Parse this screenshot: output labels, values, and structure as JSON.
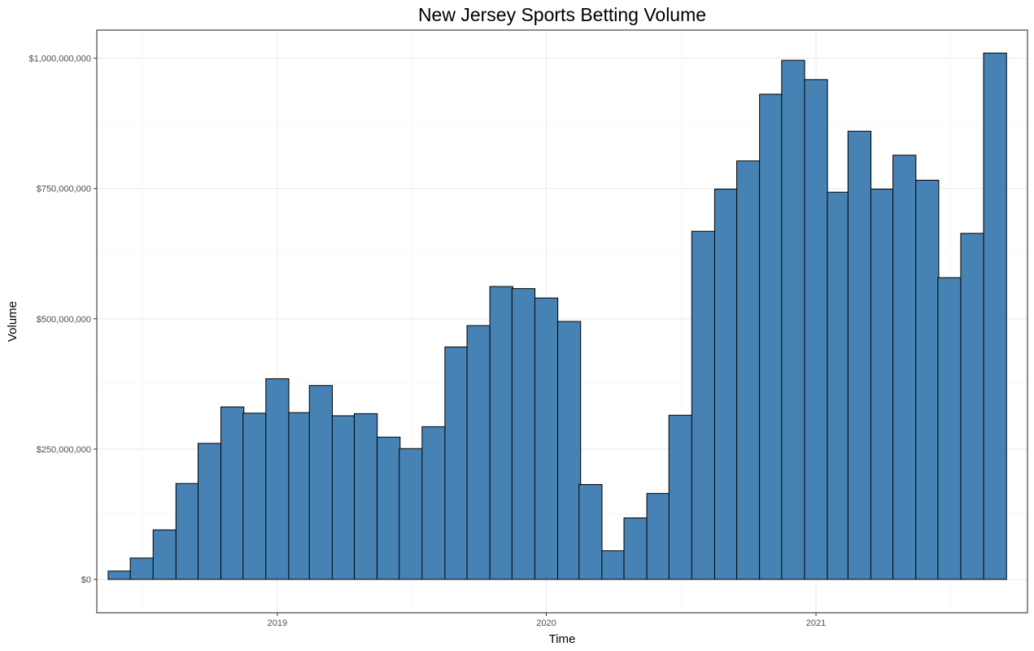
{
  "chart_data": {
    "type": "bar",
    "title": "New Jersey Sports Betting Volume",
    "xlabel": "Time",
    "ylabel": "Volume",
    "bar_color": "#4682b4",
    "bar_outline": "#000000",
    "grid": true,
    "ylim": [
      -64000000,
      1054000000
    ],
    "y_ticks": [
      0,
      250000000,
      500000000,
      750000000,
      1000000000
    ],
    "y_tick_labels": [
      "$0",
      "$250,000,000",
      "$500,000,000",
      "$750,000,000",
      "$1,000,000,000"
    ],
    "x_ticks": [
      "2019-01-01",
      "2020-01-01",
      "2021-01-01"
    ],
    "x_tick_labels": [
      "2019",
      "2020",
      "2021"
    ],
    "xlim": [
      "2018-05-01",
      "2021-10-15"
    ],
    "x": [
      "2018-06-01",
      "2018-07-01",
      "2018-08-01",
      "2018-09-01",
      "2018-10-01",
      "2018-11-01",
      "2018-12-01",
      "2019-01-01",
      "2019-02-01",
      "2019-03-01",
      "2019-04-01",
      "2019-05-01",
      "2019-06-01",
      "2019-07-01",
      "2019-08-01",
      "2019-09-01",
      "2019-10-01",
      "2019-11-01",
      "2019-12-01",
      "2020-01-01",
      "2020-02-01",
      "2020-03-01",
      "2020-04-01",
      "2020-05-01",
      "2020-06-01",
      "2020-07-01",
      "2020-08-01",
      "2020-09-01",
      "2020-10-01",
      "2020-11-01",
      "2020-12-01",
      "2021-01-01",
      "2021-02-01",
      "2021-03-01",
      "2021-04-01",
      "2021-05-01",
      "2021-06-01",
      "2021-07-01",
      "2021-08-01",
      "2021-09-01"
    ],
    "values": [
      16000000,
      41000000,
      95000000,
      184000000,
      261000000,
      331000000,
      319000000,
      385000000,
      320000000,
      372000000,
      314000000,
      318000000,
      273000000,
      251000000,
      293000000,
      446000000,
      487000000,
      562000000,
      558000000,
      540000000,
      495000000,
      182000000,
      55000000,
      118000000,
      165000000,
      315000000,
      668000000,
      749000000,
      803000000,
      931000000,
      996000000,
      959000000,
      743000000,
      860000000,
      749000000,
      814000000,
      766000000,
      579000000,
      664000000,
      1010000000
    ]
  }
}
